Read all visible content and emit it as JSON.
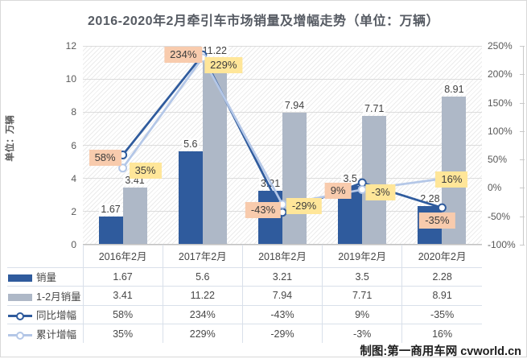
{
  "chart": {
    "title": "2016-2020年2月牵引车市场销量及增幅走势（单位：万辆）",
    "left_axis_title": "单位：万辆",
    "credit": "制图:第一商用车网 cvworld.cn"
  },
  "chart_data": {
    "type": "combo-bar-line",
    "title": "2016-2020年2月牵引车市场销量及增幅走势（单位：万辆）",
    "categories": [
      "2016年2月",
      "2017年2月",
      "2018年2月",
      "2019年2月",
      "2020年2月"
    ],
    "series": [
      {
        "name": "销量",
        "type": "bar",
        "axis": "left",
        "color": "#2F5B9D",
        "values": [
          1.67,
          5.6,
          3.21,
          3.5,
          2.28
        ],
        "labels": [
          "1.67",
          "5.6",
          "3.21",
          "3.5",
          "2.28"
        ]
      },
      {
        "name": "1-2月销量",
        "type": "bar",
        "axis": "left",
        "color": "#AEB8C7",
        "values": [
          3.41,
          11.22,
          7.94,
          7.71,
          8.91
        ],
        "labels": [
          "3.41",
          "11.22",
          "7.94",
          "7.71",
          "8.91"
        ]
      },
      {
        "name": "同比增幅",
        "type": "line",
        "axis": "right",
        "color": "#2F5B9D",
        "marker": "circle",
        "label_bg": "#F8CBAD",
        "values": [
          58,
          234,
          -43,
          9,
          -35
        ],
        "labels": [
          "58%",
          "234%",
          "-43%",
          "9%",
          "-35%"
        ]
      },
      {
        "name": "累计增幅",
        "type": "line",
        "axis": "right",
        "color": "#B4C7E7",
        "marker": "circle",
        "label_bg": "#FFE699",
        "values": [
          35,
          229,
          -29,
          -3,
          16
        ],
        "labels": [
          "35%",
          "229%",
          "-29%",
          "-3%",
          "16%"
        ]
      }
    ],
    "left_axis": {
      "title": "单位：万辆",
      "min": 0,
      "max": 12,
      "step": 2,
      "ticks": [
        "0",
        "2",
        "4",
        "6",
        "8",
        "10",
        "12"
      ]
    },
    "right_axis": {
      "min": -100,
      "max": 250,
      "step": 50,
      "ticks": [
        "-100%",
        "-50%",
        "0%",
        "50%",
        "100%",
        "150%",
        "200%",
        "250%"
      ]
    },
    "grid": true,
    "plot_background": "diagonal-hatch",
    "legend_position": "data-table-left",
    "credit": "制图:第一商用车网 cvworld.cn"
  }
}
